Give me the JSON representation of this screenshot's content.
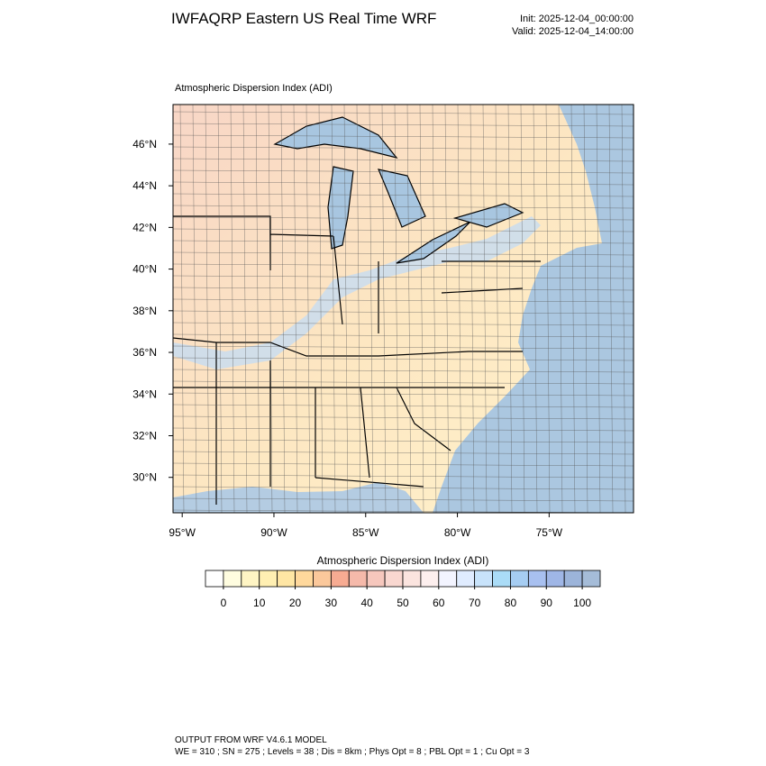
{
  "header": {
    "title": "IWFAQRP Eastern US Real Time WRF",
    "init": "Init: 2025-12-04_00:00:00",
    "valid": "Valid: 2025-12-04_14:00:00"
  },
  "map": {
    "title": "Atmospheric Dispersion Index   (ADI)",
    "lon_range": [
      -95.5,
      -70.4
    ],
    "lat_range": [
      28.3,
      47.9
    ],
    "lon_ticks": [
      {
        "value": -95,
        "label": "95°W"
      },
      {
        "value": -90,
        "label": "90°W"
      },
      {
        "value": -85,
        "label": "85°W"
      },
      {
        "value": -80,
        "label": "80°W"
      },
      {
        "value": -75,
        "label": "75°W"
      }
    ],
    "lat_ticks": [
      {
        "value": 30,
        "label": "30°N"
      },
      {
        "value": 32,
        "label": "32°N"
      },
      {
        "value": 34,
        "label": "34°N"
      },
      {
        "value": 36,
        "label": "36°N"
      },
      {
        "value": 38,
        "label": "38°N"
      },
      {
        "value": 40,
        "label": "40°N"
      },
      {
        "value": 42,
        "label": "42°N"
      },
      {
        "value": 44,
        "label": "44°N"
      },
      {
        "value": 46,
        "label": "46°N"
      }
    ]
  },
  "colorbar": {
    "title": "Atmospheric Dispersion Index (ADI)",
    "range": [
      -5,
      105
    ],
    "ticks": [
      0,
      10,
      20,
      30,
      40,
      50,
      60,
      70,
      80,
      90,
      100
    ],
    "colors": [
      "#ffffff",
      "#fffde0",
      "#fff5c4",
      "#ffefb2",
      "#ffe6a4",
      "#ffd89c",
      "#fbc89b",
      "#f7ab92",
      "#f5b9aa",
      "#f6c7bd",
      "#f9d7d0",
      "#fbe4df",
      "#fdefee",
      "#f3f4ff",
      "#e0ecff",
      "#c8e3fb",
      "#aadcf7",
      "#a6cdf2",
      "#a8c0f0",
      "#9fb6e6",
      "#9cb4da",
      "#a5bcd8"
    ]
  },
  "footer": {
    "line1": "OUTPUT FROM WRF V4.6.1 MODEL",
    "line2": "WE = 310 ; SN = 275 ; Levels = 38 ; Dis = 8km ; Phys Opt = 8 ; PBL Opt = 1 ; Cu Opt = 3"
  }
}
